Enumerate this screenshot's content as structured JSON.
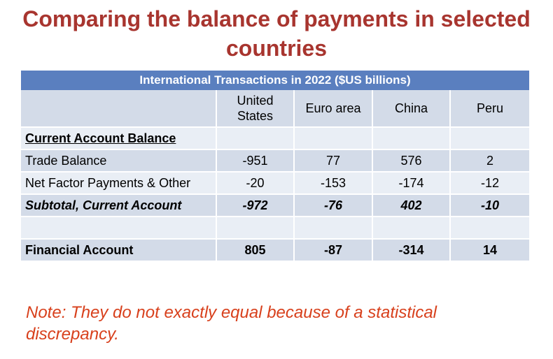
{
  "slide": {
    "title": "Comparing the balance of payments in selected countries",
    "title_color": "#a8352f"
  },
  "table": {
    "title": "International Transactions in 2022 ($US billions)",
    "header_color": "#5a7fbf",
    "columns": [
      "United States",
      "Euro area",
      "China",
      "Peru"
    ],
    "section_label": "Current Account Balance",
    "rows": [
      {
        "label": "Trade Balance",
        "values": [
          "-951",
          "77",
          "576",
          "2"
        ]
      },
      {
        "label": "Net Factor Payments & Other",
        "values": [
          "-20",
          "-153",
          "-174",
          "-12"
        ]
      }
    ],
    "subtotal": {
      "label": "Subtotal, Current Account",
      "values": [
        "-972",
        "-76",
        "402",
        "-10"
      ]
    },
    "financial": {
      "label": "Financial Account",
      "values": [
        "805",
        "-87",
        "-314",
        "14"
      ]
    }
  },
  "note": {
    "text": "Note: They do not exactly equal because of a statistical discrepancy.",
    "color": "#d8401c"
  }
}
